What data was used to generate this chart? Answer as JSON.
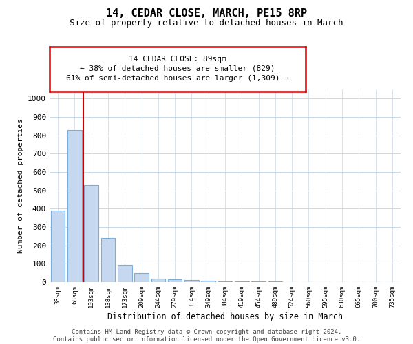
{
  "title": "14, CEDAR CLOSE, MARCH, PE15 8RP",
  "subtitle": "Size of property relative to detached houses in March",
  "xlabel": "Distribution of detached houses by size in March",
  "ylabel": "Number of detached properties",
  "bar_color": "#c5d8f0",
  "bar_edge_color": "#7aadda",
  "bin_labels": [
    "33sqm",
    "68sqm",
    "103sqm",
    "138sqm",
    "173sqm",
    "209sqm",
    "244sqm",
    "279sqm",
    "314sqm",
    "349sqm",
    "384sqm",
    "419sqm",
    "454sqm",
    "489sqm",
    "524sqm",
    "560sqm",
    "595sqm",
    "630sqm",
    "665sqm",
    "700sqm",
    "735sqm"
  ],
  "bar_heights": [
    390,
    830,
    530,
    240,
    95,
    50,
    20,
    15,
    10,
    8,
    5,
    3,
    2,
    2,
    1,
    1,
    1,
    1,
    1,
    1,
    1
  ],
  "ylim": [
    0,
    1050
  ],
  "yticks": [
    0,
    100,
    200,
    300,
    400,
    500,
    600,
    700,
    800,
    900,
    1000
  ],
  "annotation_text": "14 CEDAR CLOSE: 89sqm\n← 38% of detached houses are smaller (829)\n61% of semi-detached houses are larger (1,309) →",
  "annotation_box_color": "#ffffff",
  "annotation_box_edge_color": "#cc0000",
  "vline_color": "#cc0000",
  "vline_x": 1.5,
  "footer_text": "Contains HM Land Registry data © Crown copyright and database right 2024.\nContains public sector information licensed under the Open Government Licence v3.0.",
  "background_color": "#ffffff",
  "grid_color": "#c8d8e8"
}
